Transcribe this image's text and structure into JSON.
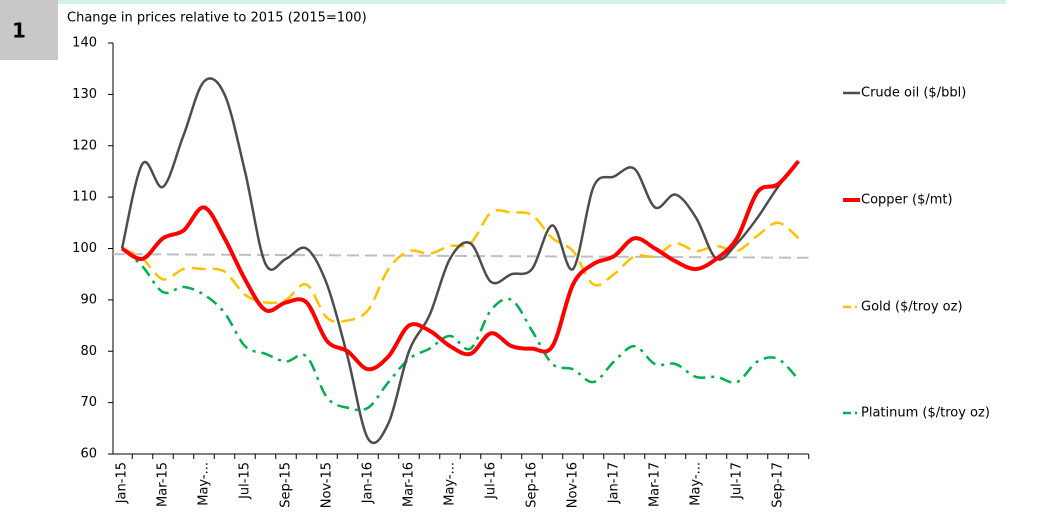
{
  "badge": "1",
  "chart_data": {
    "type": "line",
    "title": "Change in prices relative to 2015 (2015=100)",
    "categories": [
      "Jan-15",
      null,
      "Mar-15",
      null,
      "May-...",
      null,
      "Jul-15",
      null,
      "Sep-15",
      null,
      "Nov-15",
      null,
      "Jan-16",
      null,
      "Mar-16",
      null,
      "May-...",
      null,
      "Jul-16",
      null,
      "Sep-16",
      null,
      "Nov-16",
      null,
      "Jan-17",
      null,
      "Mar-17",
      null,
      "May-...",
      null,
      "Jul-17",
      null,
      "Sep-17",
      null
    ],
    "series": [
      {
        "name": "Crude oil ($/bbl)",
        "color": "#4d4d4d",
        "style": "solid",
        "values": [
          100,
          116.5,
          112,
          122,
          132.5,
          130,
          115,
          97,
          98,
          100,
          93,
          79,
          63,
          66,
          80,
          87,
          98,
          101,
          93.5,
          95,
          96,
          104.5,
          96,
          112,
          114,
          115.5,
          108,
          110.5,
          106,
          98,
          101,
          106,
          112,
          117
        ]
      },
      {
        "name": "Copper ($/mt)",
        "color": "#ff0000",
        "style": "thick",
        "values": [
          100,
          98,
          102,
          103.5,
          108,
          102,
          94,
          88,
          89.5,
          89.5,
          82,
          80,
          76.5,
          79,
          85,
          84,
          81,
          79.5,
          83.5,
          81,
          80.5,
          81,
          93,
          97,
          98.5,
          102,
          100,
          97.5,
          96,
          98,
          102,
          111,
          112.5,
          117
        ]
      },
      {
        "name": "Gold ($/troy oz)",
        "color": "#ffc000",
        "style": "dash",
        "values": [
          100,
          98,
          94,
          96,
          96,
          95.5,
          91,
          89.5,
          90,
          93,
          86.5,
          86,
          88,
          96,
          99.5,
          99,
          100.5,
          101,
          107,
          107,
          106.5,
          102,
          99.5,
          93,
          95,
          98.5,
          98.5,
          101,
          99.5,
          100.5,
          99.5,
          102.5,
          105,
          102
        ]
      },
      {
        "name": "Platinum ($/troy oz)",
        "color": "#00b050",
        "style": "dashdot",
        "values": [
          100,
          96.5,
          91.5,
          92.5,
          91,
          87.5,
          81,
          79.5,
          78,
          79,
          71,
          69,
          69,
          74,
          78.5,
          80.5,
          83,
          80.5,
          88,
          90,
          84,
          77.5,
          76.5,
          74,
          78,
          81,
          77.5,
          77.5,
          75,
          75,
          74,
          78,
          78.5,
          74.5
        ]
      }
    ],
    "reference_line": {
      "color": "#bfbfbf",
      "values": [
        98.9,
        98.2
      ]
    },
    "ylim": [
      60,
      140
    ],
    "yticks": [
      60,
      70,
      80,
      90,
      100,
      110,
      120,
      130,
      140
    ],
    "legend": "right",
    "grid": false
  }
}
